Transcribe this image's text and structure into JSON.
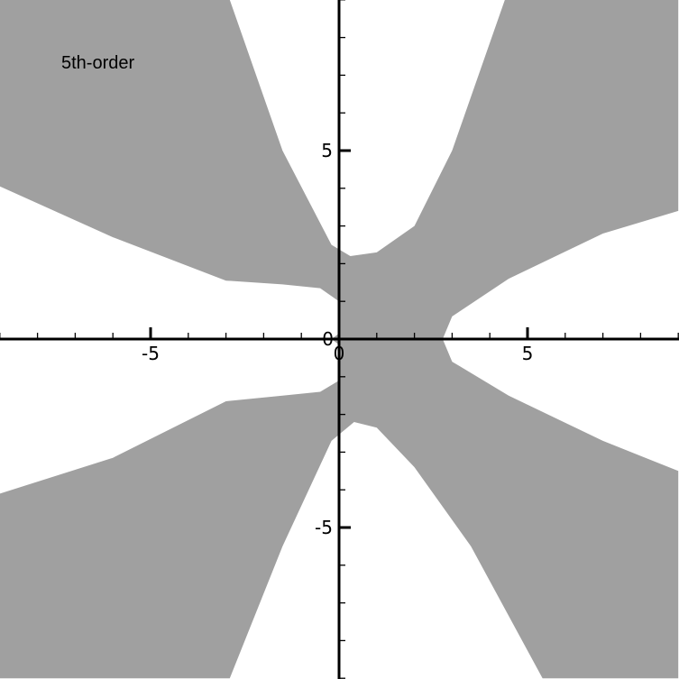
{
  "chart_data": {
    "type": "area",
    "title": "",
    "annotation": "5th-order",
    "xlabel": "",
    "ylabel": "",
    "xlim": [
      -9,
      9
    ],
    "ylim": [
      -9,
      9
    ],
    "grid": false,
    "colors": {
      "region": "#a0a0a0",
      "background": "#ffffff",
      "axes": "#000000"
    },
    "x_ticks": [
      {
        "value": -5,
        "label": "-5"
      },
      {
        "value": 0,
        "label": "0"
      },
      {
        "value": 5,
        "label": "5"
      }
    ],
    "y_ticks": [
      {
        "value": 5,
        "label": "5"
      },
      {
        "value": 0,
        "label": "0"
      },
      {
        "value": -5,
        "label": "-5"
      }
    ],
    "minor_tick_step": 1,
    "series": [
      {
        "values": [
          {
            "x": -9.0,
            "y": 4.05
          },
          {
            "x": -6.0,
            "y": 2.7
          },
          {
            "x": -3.0,
            "y": 1.55
          },
          {
            "x": -1.5,
            "y": 1.45
          },
          {
            "x": -0.5,
            "y": 1.35
          },
          {
            "x": 0.0,
            "y": 1.0
          },
          {
            "x": 0.0,
            "y": 0.15
          },
          {
            "x": -0.2,
            "y": 0.0
          },
          {
            "x": 0.0,
            "y": -0.15
          },
          {
            "x": 0.0,
            "y": -1.1
          },
          {
            "x": -0.5,
            "y": -1.4
          },
          {
            "x": -1.5,
            "y": -1.5
          },
          {
            "x": -3.0,
            "y": -1.65
          },
          {
            "x": -6.0,
            "y": -3.15
          },
          {
            "x": -9.0,
            "y": -4.1
          },
          {
            "x": -9.0,
            "y": -9.0
          },
          {
            "x": -2.9,
            "y": -9.0
          },
          {
            "x": -1.5,
            "y": -5.5
          },
          {
            "x": -0.2,
            "y": -2.7
          },
          {
            "x": 0.4,
            "y": -2.2
          },
          {
            "x": 1.0,
            "y": -2.35
          },
          {
            "x": 2.0,
            "y": -3.4
          },
          {
            "x": 3.5,
            "y": -5.5
          },
          {
            "x": 5.4,
            "y": -9.0
          },
          {
            "x": 9.0,
            "y": -9.0
          },
          {
            "x": 9.0,
            "y": -3.5
          },
          {
            "x": 7.0,
            "y": -2.7
          },
          {
            "x": 4.5,
            "y": -1.5
          },
          {
            "x": 3.0,
            "y": -0.6
          },
          {
            "x": 2.75,
            "y": 0.0
          },
          {
            "x": 3.0,
            "y": 0.6
          },
          {
            "x": 4.5,
            "y": 1.6
          },
          {
            "x": 7.0,
            "y": 2.8
          },
          {
            "x": 9.0,
            "y": 3.4
          },
          {
            "x": 9.0,
            "y": 9.0
          },
          {
            "x": 4.4,
            "y": 9.0
          },
          {
            "x": 3.0,
            "y": 5.0
          },
          {
            "x": 2.0,
            "y": 3.0
          },
          {
            "x": 1.0,
            "y": 2.3
          },
          {
            "x": 0.3,
            "y": 2.2
          },
          {
            "x": -0.2,
            "y": 2.5
          },
          {
            "x": -1.5,
            "y": 5.0
          },
          {
            "x": -2.9,
            "y": 9.0
          },
          {
            "x": -9.0,
            "y": 9.0
          }
        ]
      }
    ]
  }
}
